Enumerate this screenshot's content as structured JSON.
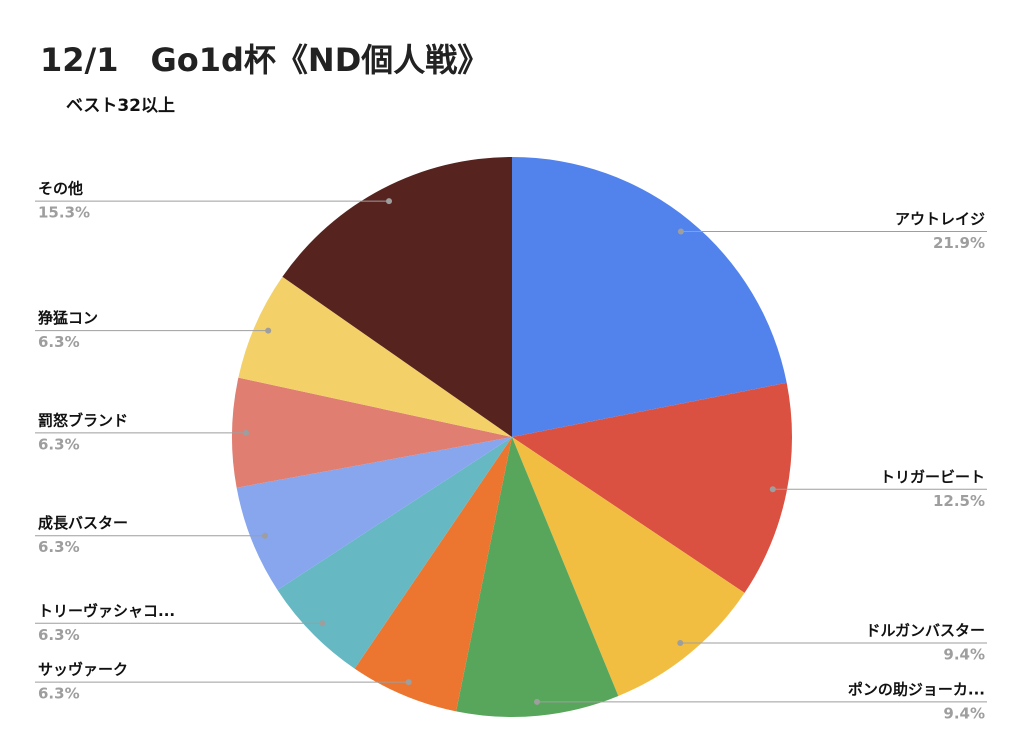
{
  "chart_data": {
    "type": "pie",
    "title": "12/1　Go1d杯《ND個人戦》",
    "subtitle": "ベスト32以上",
    "categories": [
      "アウトレイジ",
      "トリガービート",
      "ドルガンバスター",
      "ポンの助ジョーカ...",
      "サッヴァーク",
      "トリーヴァシャコ...",
      "成長バスター",
      "罰怒ブランド",
      "狰猛コン",
      "その他"
    ],
    "values": [
      21.9,
      12.5,
      9.4,
      9.4,
      6.3,
      6.3,
      6.3,
      6.3,
      6.3,
      15.3
    ],
    "value_labels": [
      "21.9%",
      "12.5%",
      "9.4%",
      "9.4%",
      "6.3%",
      "6.3%",
      "6.3%",
      "6.3%",
      "6.3%",
      "15.3%"
    ],
    "colors": [
      "#5283ec",
      "#da5141",
      "#f1be42",
      "#58a65c",
      "#ec7630",
      "#66b8c3",
      "#87a6ee",
      "#e07e72",
      "#f3d168",
      "#56231f"
    ]
  }
}
